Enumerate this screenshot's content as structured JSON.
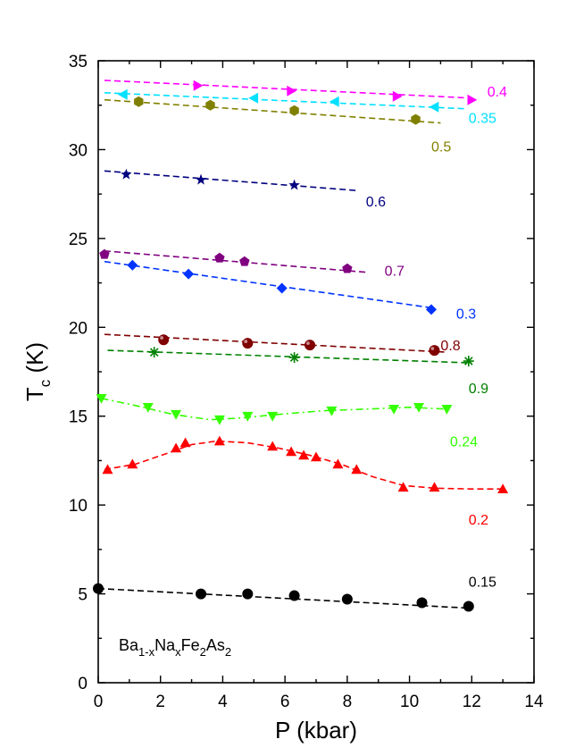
{
  "chart_data": {
    "type": "scatter",
    "xlabel": "P (kbar)",
    "ylabel_main": "T",
    "ylabel_sub": "c",
    "ylabel_unit": " (K)",
    "xlim": [
      0,
      14
    ],
    "ylim": [
      0,
      35
    ],
    "x_ticks": [
      0,
      2,
      4,
      6,
      8,
      10,
      12,
      14
    ],
    "y_ticks": [
      0,
      5,
      10,
      15,
      20,
      25,
      30,
      35
    ],
    "grid": false,
    "annotation": {
      "parts": [
        {
          "text": "Ba",
          "sub": false
        },
        {
          "text": "1-x",
          "sub": true
        },
        {
          "text": "Na",
          "sub": false
        },
        {
          "text": "x",
          "sub": true
        },
        {
          "text": "Fe",
          "sub": false
        },
        {
          "text": "2",
          "sub": true
        },
        {
          "text": "As",
          "sub": false
        },
        {
          "text": "2",
          "sub": true
        }
      ]
    },
    "series": [
      {
        "name": "0.4",
        "color": "#ff00ff",
        "marker": "triangle-right",
        "x": [
          3.2,
          6.2,
          9.6,
          12.0
        ],
        "y": [
          33.6,
          33.3,
          33.0,
          32.8
        ],
        "fit": {
          "x": [
            0.2,
            12.0
          ],
          "y": [
            33.9,
            32.9
          ],
          "style": "dash"
        },
        "label_at": [
          12.5,
          33.3
        ]
      },
      {
        "name": "0.35",
        "color": "#00e0ff",
        "marker": "triangle-left",
        "x": [
          0.8,
          5.0,
          7.6,
          10.8
        ],
        "y": [
          33.1,
          32.9,
          32.7,
          32.4
        ],
        "fit": {
          "x": [
            0.2,
            11.8
          ],
          "y": [
            33.2,
            32.3
          ],
          "style": "dash"
        },
        "label_at": [
          11.9,
          31.8
        ]
      },
      {
        "name": "0.5",
        "color": "#808000",
        "marker": "hexagon",
        "x": [
          1.3,
          3.6,
          6.3,
          10.2
        ],
        "y": [
          32.7,
          32.5,
          32.2,
          31.7
        ],
        "fit": {
          "x": [
            0.2,
            11.0
          ],
          "y": [
            32.8,
            31.5
          ],
          "style": "dash"
        },
        "label_at": [
          10.7,
          30.2
        ]
      },
      {
        "name": "0.6",
        "color": "#000080",
        "marker": "star",
        "x": [
          0.9,
          3.3,
          6.3
        ],
        "y": [
          28.6,
          28.3,
          28.0
        ],
        "fit": {
          "x": [
            0.2,
            8.3
          ],
          "y": [
            28.8,
            27.7
          ],
          "style": "dash"
        },
        "label_at": [
          8.6,
          27.1
        ]
      },
      {
        "name": "0.7",
        "color": "#800080",
        "marker": "pentagon",
        "x": [
          0.2,
          3.9,
          4.7,
          8.0
        ],
        "y": [
          24.1,
          23.9,
          23.7,
          23.3
        ],
        "fit": {
          "x": [
            0.2,
            8.6
          ],
          "y": [
            24.3,
            23.1
          ],
          "style": "dash"
        },
        "label_at": [
          9.2,
          23.2
        ]
      },
      {
        "name": "0.3",
        "color": "#0033ff",
        "marker": "diamond",
        "x": [
          1.1,
          2.9,
          5.9,
          10.7
        ],
        "y": [
          23.5,
          23.0,
          22.2,
          21.0
        ],
        "fit": {
          "x": [
            0.2,
            10.7
          ],
          "y": [
            23.7,
            21.1
          ],
          "style": "dash"
        },
        "label_at": [
          11.5,
          20.8
        ]
      },
      {
        "name": "0.8",
        "color": "#800000",
        "marker": "sphere",
        "x": [
          2.1,
          4.8,
          6.8,
          10.8
        ],
        "y": [
          19.3,
          19.1,
          19.0,
          18.7
        ],
        "fit": {
          "x": [
            0.2,
            11.2
          ],
          "y": [
            19.6,
            18.6
          ],
          "style": "dash"
        },
        "label_at": [
          11.0,
          19.0
        ]
      },
      {
        "name": "0.9",
        "color": "#008000",
        "marker": "asterisk",
        "x": [
          1.8,
          6.3,
          11.9
        ],
        "y": [
          18.6,
          18.3,
          18.1
        ],
        "fit": {
          "x": [
            0.3,
            12.0
          ],
          "y": [
            18.7,
            18.0
          ],
          "style": "dash"
        },
        "label_at": [
          11.9,
          16.6
        ]
      },
      {
        "name": "0.24",
        "color": "#33ff00",
        "marker": "triangle-down",
        "x": [
          0.1,
          1.6,
          2.5,
          3.9,
          4.8,
          5.6,
          7.5,
          9.5,
          10.3,
          11.2
        ],
        "y": [
          16.0,
          15.5,
          15.1,
          14.8,
          15.0,
          15.0,
          15.3,
          15.4,
          15.5,
          15.4
        ],
        "fit": {
          "x": [
            0.1,
            1.2,
            2.4,
            3.6,
            4.6,
            5.8,
            7.2,
            8.6,
            10.0,
            11.2
          ],
          "y": [
            16.0,
            15.6,
            15.1,
            14.8,
            14.9,
            15.1,
            15.3,
            15.4,
            15.5,
            15.4
          ],
          "style": "dashdot"
        },
        "label_at": [
          11.3,
          13.6
        ]
      },
      {
        "name": "0.2",
        "color": "#ff0000",
        "marker": "triangle-up",
        "x": [
          0.3,
          1.1,
          2.5,
          2.8,
          3.9,
          5.6,
          6.2,
          6.6,
          7.0,
          7.7,
          8.3,
          9.8,
          10.8,
          13.0
        ],
        "y": [
          12.0,
          12.3,
          13.2,
          13.5,
          13.6,
          13.3,
          13.0,
          12.8,
          12.7,
          12.3,
          12.0,
          11.0,
          11.0,
          10.9
        ],
        "fit": {
          "x": [
            0.2,
            1.2,
            2.2,
            3.0,
            3.8,
            4.8,
            5.8,
            6.8,
            7.8,
            8.8,
            9.8,
            10.8,
            12.0,
            13.0
          ],
          "y": [
            12.0,
            12.3,
            12.9,
            13.4,
            13.6,
            13.5,
            13.2,
            12.8,
            12.3,
            11.6,
            11.1,
            10.95,
            10.9,
            10.9
          ],
          "style": "dash"
        },
        "label_at": [
          11.9,
          9.2
        ]
      },
      {
        "name": "0.15",
        "color": "#000000",
        "marker": "circle",
        "x": [
          0.0,
          3.3,
          4.8,
          6.3,
          8.0,
          10.4,
          11.9
        ],
        "y": [
          5.3,
          5.0,
          5.0,
          4.9,
          4.7,
          4.5,
          4.3
        ],
        "fit": {
          "x": [
            0.0,
            11.9
          ],
          "y": [
            5.3,
            4.2
          ],
          "style": "dash"
        },
        "label_at": [
          11.9,
          5.7
        ]
      }
    ]
  }
}
